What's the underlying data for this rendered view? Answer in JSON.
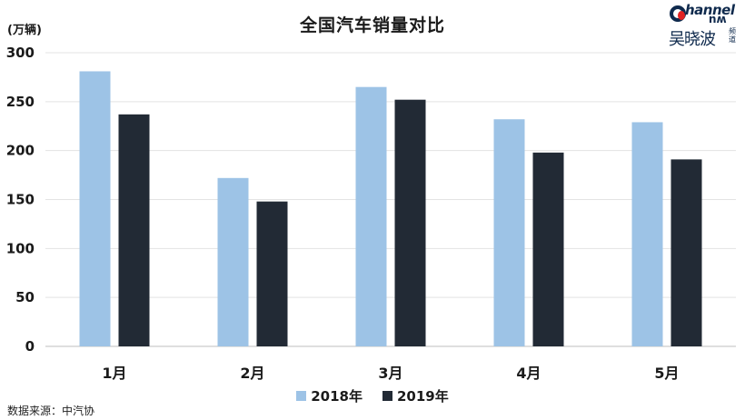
{
  "title": "全国汽车销量对比",
  "unit": "(万辆)",
  "source": "数据来源：中汽协",
  "logo": {
    "brand": "hannel",
    "brand_vertical": "wu",
    "name_cn": "吴晓波",
    "name_small": "频道"
  },
  "colors": {
    "2018": "#9dc3e6",
    "2019": "#222a35"
  },
  "chart_data": {
    "type": "bar",
    "title": "全国汽车销量对比",
    "ylabel": "(万辆)",
    "categories": [
      "1月",
      "2月",
      "3月",
      "4月",
      "5月"
    ],
    "series": [
      {
        "name": "2018年",
        "values": [
          281,
          172,
          265,
          232,
          229
        ]
      },
      {
        "name": "2019年",
        "values": [
          237,
          148,
          252,
          198,
          191
        ]
      }
    ],
    "yticks": [
      0,
      50,
      100,
      150,
      200,
      250,
      300
    ],
    "ylim": [
      0,
      300
    ],
    "grid": true,
    "legend": "bottom"
  }
}
